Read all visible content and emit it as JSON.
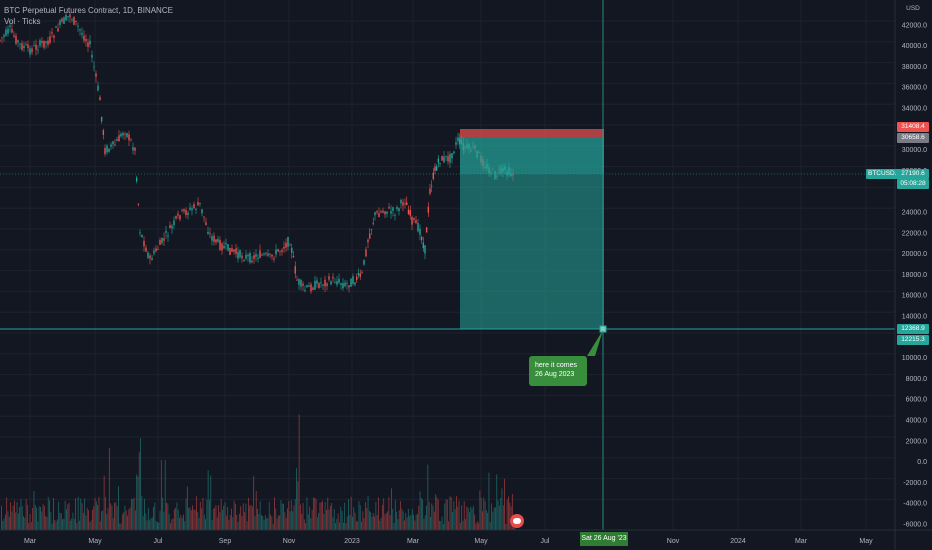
{
  "header": {
    "title": "BTC Perpetual Futures Contract, 1D, BINANCE",
    "indicator": "Vol · Ticks"
  },
  "price_axis": {
    "currency": "USD",
    "labels": [
      "42000.0",
      "40000.0",
      "38000.0",
      "36000.0",
      "34000.0",
      "30000.0",
      "28000.0",
      "24000.0",
      "22000.0",
      "20000.0",
      "18000.0",
      "16000.0",
      "14000.0",
      "10000.0",
      "8000.0",
      "6000.0",
      "4000.0",
      "2000.0",
      "0.0",
      "-2000.0",
      "-4000.0",
      "-6000.0"
    ]
  },
  "time_axis": {
    "labels": [
      "Mar",
      "May",
      "Jul",
      "Sep",
      "Nov",
      "2023",
      "Mar",
      "May",
      "Jul",
      "Nov",
      "2024",
      "Mar",
      "May"
    ]
  },
  "badges": {
    "stop": "31408.4",
    "entry": "30658.6",
    "symbol": "BTCUSD.P",
    "price": "27190.6",
    "countdown": "05:08:28",
    "target": "12368.9",
    "target2": "12215.3"
  },
  "crosshair": {
    "date_label": "Sat 26 Aug '23"
  },
  "callout": {
    "line1": "here it comes",
    "line2": "26 Aug 2023"
  },
  "colors": {
    "background": "#131722",
    "up": "#26a69a",
    "down": "#ef5350",
    "profit_zone": "#26a69a",
    "stop_zone": "#ef5350",
    "callout": "#388e3c"
  },
  "icons": {
    "alert": "alert-icon"
  }
}
